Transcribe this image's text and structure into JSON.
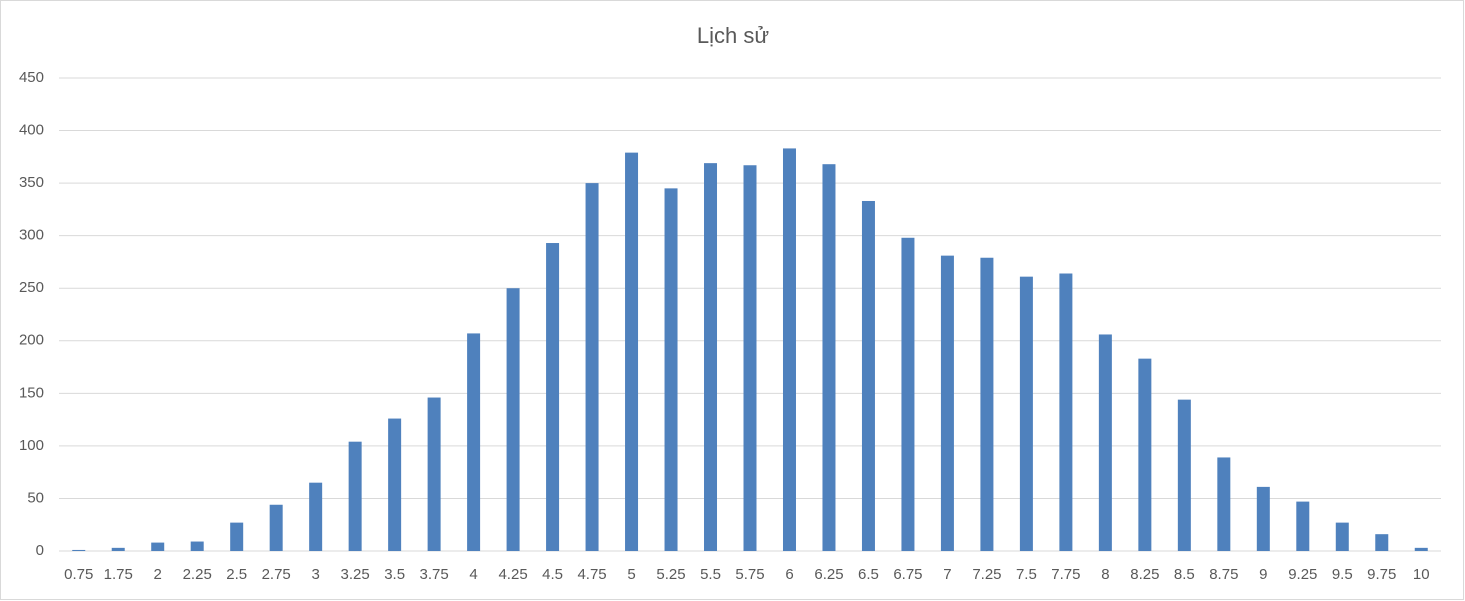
{
  "chart_data": {
    "type": "bar",
    "title": "Lịch sử",
    "categories": [
      "0.75",
      "1.75",
      "2",
      "2.25",
      "2.5",
      "2.75",
      "3",
      "3.25",
      "3.5",
      "3.75",
      "4",
      "4.25",
      "4.5",
      "4.75",
      "5",
      "5.25",
      "5.5",
      "5.75",
      "6",
      "6.25",
      "6.5",
      "6.75",
      "7",
      "7.25",
      "7.5",
      "7.75",
      "8",
      "8.25",
      "8.5",
      "8.75",
      "9",
      "9.25",
      "9.5",
      "9.75",
      "10"
    ],
    "values": [
      1,
      3,
      8,
      9,
      27,
      44,
      65,
      104,
      126,
      146,
      207,
      250,
      293,
      350,
      379,
      345,
      369,
      367,
      383,
      368,
      333,
      298,
      281,
      279,
      261,
      264,
      206,
      183,
      144,
      89,
      61,
      47,
      27,
      16,
      3
    ],
    "color": "#4f81bd",
    "ylim": [
      0,
      450
    ],
    "yticks": [
      0,
      50,
      100,
      150,
      200,
      250,
      300,
      350,
      400,
      450
    ],
    "grid": true
  }
}
